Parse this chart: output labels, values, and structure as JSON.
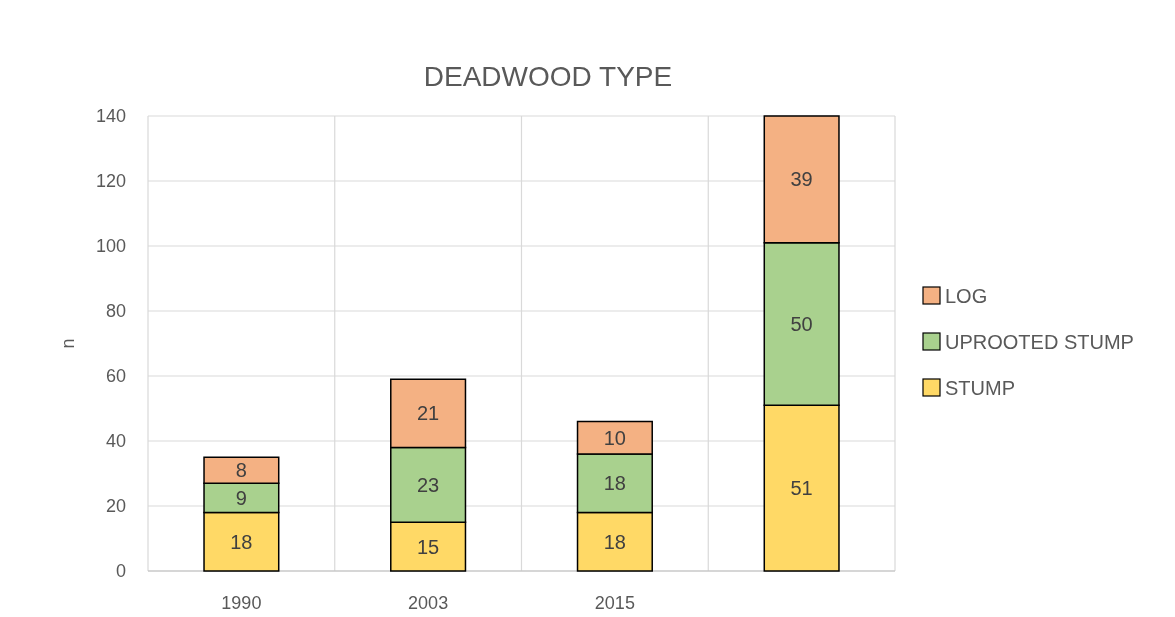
{
  "chart_data": {
    "type": "bar",
    "title": "DEADWOOD TYPE",
    "ylabel": "n",
    "categories": [
      "1990",
      "2003",
      "2015",
      null
    ],
    "stacked": true,
    "series": [
      {
        "name": "STUMP",
        "color": "#ffd966",
        "values": [
          18,
          15,
          18,
          51
        ]
      },
      {
        "name": "UPROOTED STUMP",
        "color": "#a9d18e",
        "values": [
          9,
          23,
          18,
          50
        ]
      },
      {
        "name": "LOG",
        "color": "#f4b183",
        "values": [
          8,
          21,
          10,
          39
        ]
      }
    ],
    "ylim": [
      0,
      140
    ],
    "yticks": [
      0,
      20,
      40,
      60,
      80,
      100,
      120,
      140
    ],
    "grid": true,
    "legend": "right",
    "data_labels": true
  }
}
